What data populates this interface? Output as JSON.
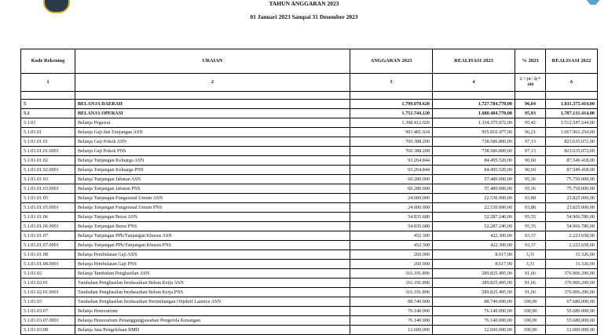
{
  "header": {
    "title": "TAHUN ANGGARAN 2023",
    "period": "01 Januari 2023 Sampai 31 Desember 2023"
  },
  "table": {
    "columns": [
      "Kode Rekening",
      "URAIAN",
      "ANGGARAN 2023",
      "REALISASI 2023",
      "% 2023",
      "REALISASI 2022"
    ],
    "column_numbers": [
      "1",
      "2",
      "3",
      "4",
      "5 = (4 / 3) * 100",
      "6"
    ],
    "rows": [
      {
        "kode": "5",
        "uraian": "BELANJA DAERAH",
        "anggaran": "1.799.070.620",
        "realisasi": "1.727.784.770,00",
        "persen": "96,04",
        "realisasi_lalu": "1.811.375.414,00",
        "bold": true
      },
      {
        "kode": "5.1",
        "uraian": "BELANJA OPERASI",
        "anggaran": "1.751.744.120",
        "realisasi": "1.680.484.770,00",
        "persen": "95,93",
        "realisasi_lalu": "1.787.131.414,00",
        "bold": true
      },
      {
        "kode": "5.1.01",
        "uraian": "Belanja Pegawai",
        "anggaran": "1.398.412.920",
        "realisasi": "1.334.375.972,00",
        "persen": "95,42",
        "realisasi_lalu": "1.512.547.544,00"
      },
      {
        "kode": "5.1.01.01",
        "uraian": "Belanja Gaji dan Tunjangan ASN",
        "anggaran": "993.481.024",
        "realisasi": "955.810.477,00",
        "persen": "96,21",
        "realisasi_lalu": "1.067.961.254,00"
      },
      {
        "kode": "5.1.01.01.01",
        "uraian": "Belanja Gaji Pokok ASN",
        "anggaran": "760.388.200",
        "realisasi": "738.586.800,00",
        "persen": "97,13",
        "realisasi_lalu": "823.635.072,00"
      },
      {
        "kode": "5.1.01.01.01.0001",
        "uraian": "Belanja Gaji Pokok PNS",
        "anggaran": "760.388.200",
        "realisasi": "738.586.800,00",
        "persen": "97,13",
        "realisasi_lalu": "823.635.072,00"
      },
      {
        "kode": "5.1.01.01.02",
        "uraian": "Belanja Tunjangan Keluarga ASN",
        "anggaran": "93.264.844",
        "realisasi": "84.495.520,00",
        "persen": "90,60",
        "realisasi_lalu": "87.549.418,00"
      },
      {
        "kode": "5.1.01.01.02.0001",
        "uraian": "Belanja Tunjangan Keluarga PNS",
        "anggaran": "93.264.844",
        "realisasi": "84.495.520,00",
        "persen": "90,60",
        "realisasi_lalu": "87.549.418,00"
      },
      {
        "kode": "5.1.01.01.03",
        "uraian": "Belanja Tunjangan Jabatan ASN",
        "anggaran": "60.280.000",
        "realisasi": "57.480.000,00",
        "persen": "95,36",
        "realisasi_lalu": "75.750.000,00"
      },
      {
        "kode": "5.1.01.01.03.0001",
        "uraian": "Belanja Tunjangan Jabatan PNS",
        "anggaran": "60.280.000",
        "realisasi": "57.480.000,00",
        "persen": "95,36",
        "realisasi_lalu": "75.750.000,00"
      },
      {
        "kode": "5.1.01.01.05",
        "uraian": "Belanja Tunjangan Fungsional Umum ASN",
        "anggaran": "24.000.000",
        "realisasi": "22.530.000,00",
        "persen": "93,88",
        "realisasi_lalu": "23.825.000,00"
      },
      {
        "kode": "5.1.01.01.05.0001",
        "uraian": "Belanja Tunjangan Fungsional Umum PNS",
        "anggaran": "24.000.000",
        "realisasi": "22.530.000,00",
        "persen": "93,88",
        "realisasi_lalu": "23.825.000,00"
      },
      {
        "kode": "5.1.01.01.06",
        "uraian": "Belanja Tunjangan Beras ASN",
        "anggaran": "54.835.680",
        "realisasi": "52.287.240,00",
        "persen": "95,35",
        "realisasi_lalu": "54.966.780,00"
      },
      {
        "kode": "5.1.01.01.06.0001",
        "uraian": "Belanja Tunjangan Beras PNS",
        "anggaran": "54.835.680",
        "realisasi": "52.287.240,00",
        "persen": "95,35",
        "realisasi_lalu": "54.966.780,00"
      },
      {
        "kode": "5.1.01.01.07",
        "uraian": "Belanja Tunjangan PPh/Tunjangan Khusus ASN",
        "anggaran": "452.300",
        "realisasi": "422.300,00",
        "persen": "93,37",
        "realisasi_lalu": "2.223.658,00"
      },
      {
        "kode": "5.1.01.01.07.0001",
        "uraian": "Belanja Tunjangan PPh/Tunjangan Khusus PNS",
        "anggaran": "452.300",
        "realisasi": "422.300,00",
        "persen": "93,37",
        "realisasi_lalu": "2.223.658,00"
      },
      {
        "kode": "5.1.01.01.08",
        "uraian": "Belanja Pembulatan Gaji ASN",
        "anggaran": "260.000",
        "realisasi": "8.617,00",
        "persen": "3,31",
        "realisasi_lalu": "11.326,00"
      },
      {
        "kode": "5.1.01.01.08.0001",
        "uraian": "Belanja Pembulatan Gaji PNS",
        "anggaran": "260.000",
        "realisasi": "8.617,00",
        "persen": "3,31",
        "realisasi_lalu": "11.326,00"
      },
      {
        "kode": "5.1.01.02",
        "uraian": "Belanja Tambahan Penghasilan ASN",
        "anggaran": "316.191.896",
        "realisasi": "289.825.495,00",
        "persen": "91,66",
        "realisasi_lalu": "376.906.290,00"
      },
      {
        "kode": "5.1.01.02.01",
        "uraian": "Tambahan Penghasilan berdasarkan Beban Kerja ASN",
        "anggaran": "316.191.896",
        "realisasi": "289.825.495,00",
        "persen": "91,66",
        "realisasi_lalu": "376.906.290,00"
      },
      {
        "kode": "5.1.01.02.01.0001",
        "uraian": "Tambahan Penghasilan berdasarkan Beban Kerja PNS",
        "anggaran": "316.191.896",
        "realisasi": "289.825.495,00",
        "persen": "91,66",
        "realisasi_lalu": "376.906.290,00"
      },
      {
        "kode": "5.1.01.03",
        "uraian": "Tambahan Penghasilan berdasarkan Pertimbangan Objektif Lainnya ASN",
        "anggaran": "88.740.000",
        "realisasi": "88.740.000,00",
        "persen": "100,00",
        "realisasi_lalu": "67.680.000,00"
      },
      {
        "kode": "5.1.01.03.07",
        "uraian": "Belanja Honorarium",
        "anggaran": "76.140.000",
        "realisasi": "76.140.000,00",
        "persen": "100,00",
        "realisasi_lalu": "55.680.000,00"
      },
      {
        "kode": "5.1.01.03.07.0001",
        "uraian": "Belanja Honorarium Penanggungjawaban Pengelola Keuangan",
        "anggaran": "76.140.000",
        "realisasi": "76.140.000,00",
        "persen": "100,00",
        "realisasi_lalu": "55.680.000,00"
      },
      {
        "kode": "5.1.01.03.08",
        "uraian": "Belanja Jasa Pengelolaan BMD",
        "anggaran": "12.600.000",
        "realisasi": "12.600.000,00",
        "persen": "100,00",
        "realisasi_lalu": "12.000.000,00"
      }
    ]
  }
}
